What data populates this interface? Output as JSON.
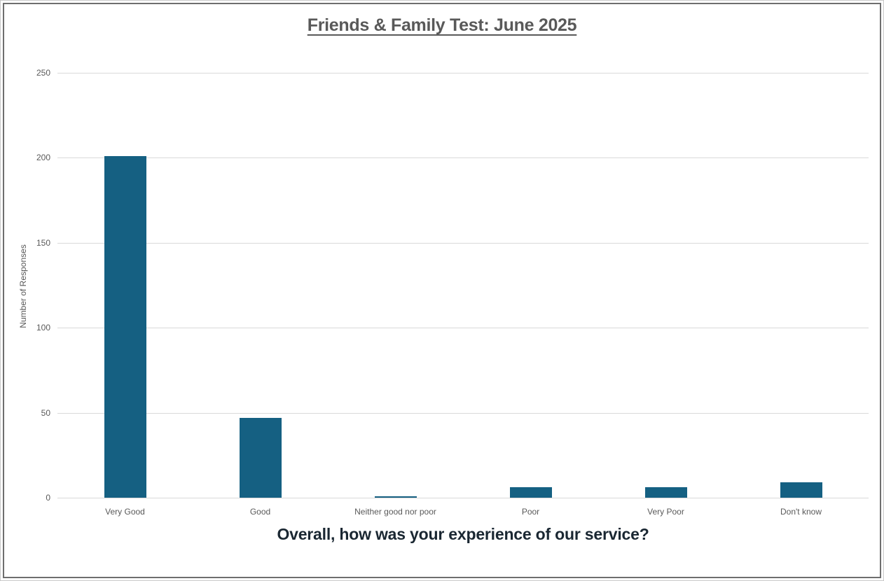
{
  "chart_data": {
    "type": "bar",
    "title": "Friends & Family Test: June 2025",
    "xlabel": "Overall, how was your experience of our service?",
    "ylabel": "Number of Responses",
    "categories": [
      "Very Good",
      "Good",
      "Neither good nor poor",
      "Poor",
      "Very Poor",
      "Don't know"
    ],
    "values": [
      201,
      47,
      1,
      6,
      6,
      9
    ],
    "ylim": [
      0,
      250
    ],
    "yticks": [
      0,
      50,
      100,
      150,
      200,
      250
    ],
    "grid": true,
    "legend": "none",
    "colors": {
      "bar": "#156082",
      "gridline": "#d9d9d9",
      "axis_text": "#595959",
      "title_text": "#595959",
      "xlabel_text": "#1a2732",
      "frame_outer": "#c9c9c9",
      "frame_inner": "#6e6e6e"
    }
  }
}
